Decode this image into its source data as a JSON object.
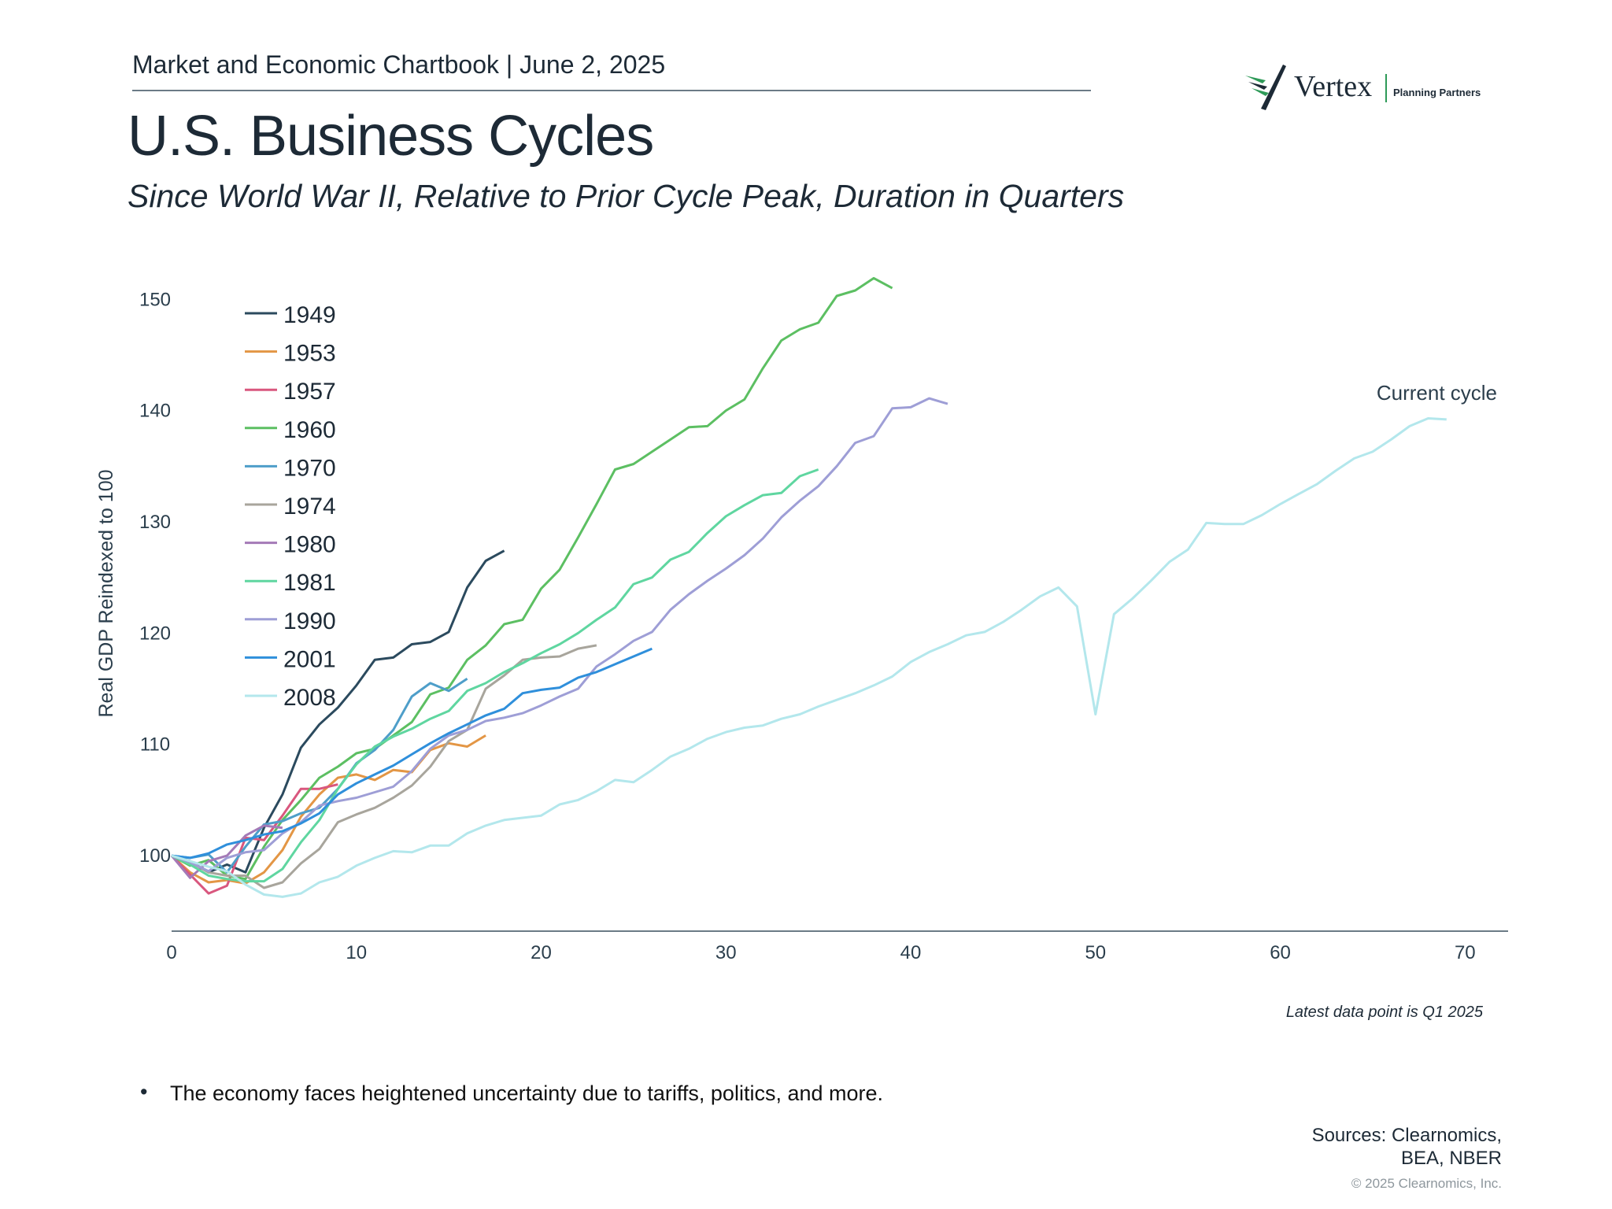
{
  "header": {
    "chartbook": "Market and Economic Chartbook | June 2, 2025",
    "title": "U.S. Business Cycles",
    "subtitle": "Since World War II, Relative to Prior Cycle Peak, Duration in Quarters"
  },
  "logo": {
    "name": "Vertex",
    "tagline": "Planning Partners"
  },
  "chart_data": {
    "type": "line",
    "title": "U.S. Business Cycles",
    "xlabel": "",
    "ylabel": "Real GDP Reindexed to 100",
    "xlim": [
      0,
      72.5
    ],
    "ylim": [
      93,
      152
    ],
    "x_ticks": [
      0,
      10,
      20,
      30,
      40,
      50,
      60,
      70
    ],
    "y_ticks": [
      100,
      110,
      120,
      130,
      140,
      150
    ],
    "legend_position": "top-left",
    "annotation": "Current cycle",
    "series": [
      {
        "name": "1949",
        "color": "#2b4a5e",
        "values": [
          100,
          99.5,
          98.5,
          99.2,
          98.5,
          102.5,
          105.5,
          109.7,
          111.8,
          113.3,
          115.3,
          117.6,
          117.8,
          119,
          119.2,
          120.1,
          124.1,
          126.5,
          127.4
        ]
      },
      {
        "name": "1953",
        "color": "#e39645",
        "values": [
          100,
          98.5,
          97.6,
          97.8,
          97.5,
          98.5,
          100.5,
          103.5,
          105.5,
          107,
          107.3,
          106.8,
          107.7,
          107.5,
          109.5,
          110.1,
          109.8,
          110.8
        ]
      },
      {
        "name": "1957",
        "color": "#d9577e",
        "values": [
          100,
          98.3,
          96.6,
          97.3,
          101.6,
          101.4,
          103.6,
          106,
          106,
          106.4
        ]
      },
      {
        "name": "1960",
        "color": "#5cbf62",
        "values": [
          100,
          99.1,
          99.6,
          98.2,
          97.9,
          100.8,
          103.2,
          105,
          107,
          108,
          109.2,
          109.6,
          110.8,
          112,
          114.5,
          115.1,
          117.6,
          118.9,
          120.8,
          121.2,
          124,
          125.7,
          128.6,
          131.6,
          134.7,
          135.2,
          136.3,
          137.4,
          138.5,
          138.6,
          140,
          141,
          143.8,
          146.3,
          147.3,
          147.9,
          150.3,
          150.8,
          151.9,
          151
        ]
      },
      {
        "name": "1970",
        "color": "#4e9ec9",
        "values": [
          100,
          99.8,
          100.1,
          98.5,
          100.8,
          102.8,
          103.1,
          103.8,
          104.3,
          106,
          108.3,
          109.5,
          111.3,
          114.3,
          115.5,
          114.8,
          115.9
        ]
      },
      {
        "name": "1974",
        "color": "#a8a59c",
        "values": [
          100,
          99.4,
          98.5,
          98.2,
          98.2,
          97.1,
          97.6,
          99.3,
          100.6,
          103,
          103.7,
          104.3,
          105.2,
          106.3,
          108,
          110.3,
          111.3,
          115,
          116.2,
          117.6,
          117.8,
          117.9,
          118.6,
          118.9
        ]
      },
      {
        "name": "1980",
        "color": "#a47ab7",
        "values": [
          100,
          98,
          99.5,
          100,
          101.8,
          102.7,
          102.5
        ]
      },
      {
        "name": "1981",
        "color": "#5fd6a0",
        "values": [
          100,
          99.2,
          98.2,
          97.9,
          97.7,
          97.7,
          98.8,
          101.2,
          103.2,
          106,
          108.2,
          109.8,
          110.7,
          111.4,
          112.3,
          113,
          114.8,
          115.5,
          116.5,
          117.3,
          118.2,
          119,
          120,
          121.2,
          122.3,
          124.4,
          125,
          126.6,
          127.3,
          129,
          130.5,
          131.5,
          132.4,
          132.6,
          134.1,
          134.7
        ]
      },
      {
        "name": "1990",
        "color": "#9e9ed6",
        "values": [
          100,
          99.4,
          98.6,
          99.8,
          100.3,
          100.5,
          102,
          103,
          104.5,
          104.9,
          105.2,
          105.7,
          106.2,
          107.6,
          109.6,
          110.8,
          111.3,
          112.1,
          112.4,
          112.8,
          113.5,
          114.3,
          115,
          117,
          118.1,
          119.3,
          120.1,
          122.1,
          123.5,
          124.7,
          125.8,
          127,
          128.5,
          130.4,
          131.9,
          133.2,
          135,
          137.1,
          137.7,
          140.2,
          140.3,
          141.1,
          140.6
        ]
      },
      {
        "name": "2001",
        "color": "#2f8fdb",
        "values": [
          100,
          99.8,
          100.2,
          101,
          101.4,
          101.9,
          102.2,
          102.9,
          103.8,
          105.5,
          106.5,
          107.3,
          108.1,
          109.1,
          110.1,
          111,
          111.8,
          112.6,
          113.2,
          114.6,
          114.9,
          115.1,
          116,
          116.5,
          117.2,
          117.9,
          118.6
        ]
      },
      {
        "name": "2008",
        "color": "#b3e7ec",
        "values": [
          100,
          99.5,
          99,
          98.6,
          97.4,
          96.5,
          96.3,
          96.6,
          97.6,
          98.1,
          99.1,
          99.8,
          100.4,
          100.3,
          100.9,
          100.9,
          102,
          102.7,
          103.2,
          103.4,
          103.6,
          104.6,
          105,
          105.8,
          106.8,
          106.6,
          107.7,
          108.9,
          109.6,
          110.5,
          111.1,
          111.5,
          111.7,
          112.3,
          112.7,
          113.4,
          114,
          114.6,
          115.3,
          116.1,
          117.4,
          118.3,
          119,
          119.8,
          120.1,
          121,
          122.1,
          123.3,
          124.1,
          122.4,
          112.7,
          121.7,
          123.1,
          124.7,
          126.4,
          127.5,
          129.9,
          129.8,
          129.8,
          130.6,
          131.6,
          132.5,
          133.4,
          134.6,
          135.7,
          136.3,
          137.4,
          138.6,
          139.3,
          139.2
        ]
      }
    ]
  },
  "footnote": "Latest data point is Q1 2025",
  "bullets": [
    "The economy faces heightened uncertainty due to tariffs, politics, and more."
  ],
  "sources": {
    "line1": "Sources: Clearnomics,",
    "line2": "BEA, NBER"
  },
  "copyright": "© 2025 Clearnomics, Inc."
}
